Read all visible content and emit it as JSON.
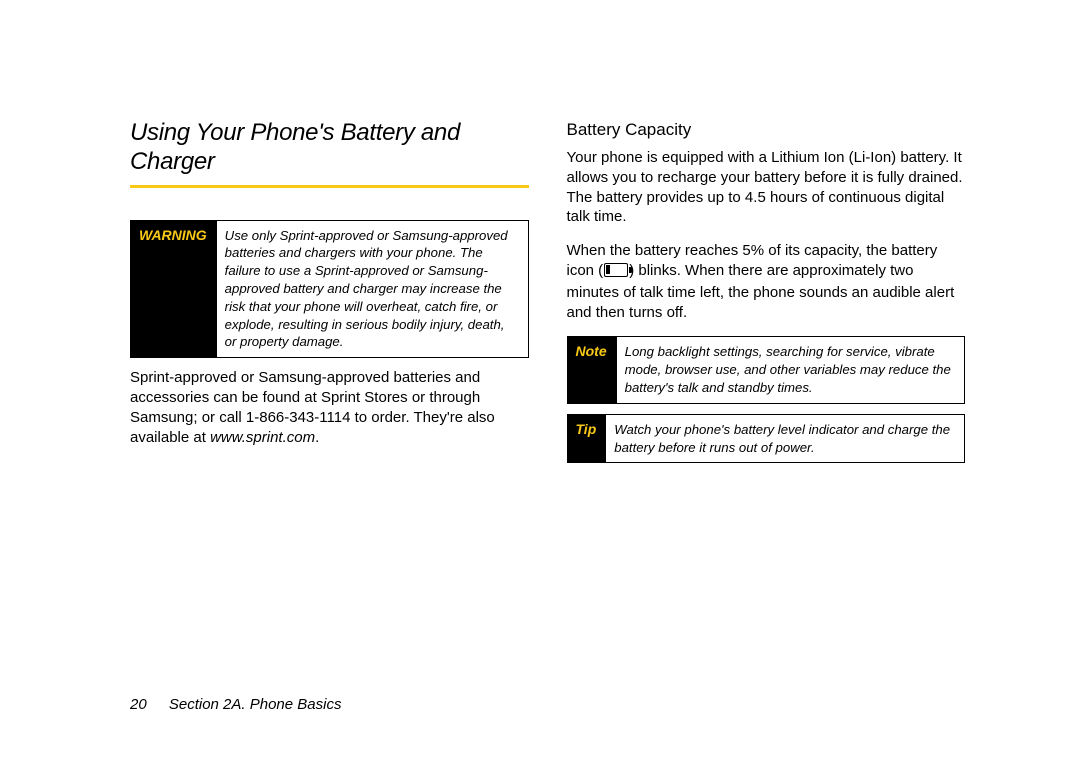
{
  "accent_color": "#f9c918",
  "left": {
    "title": "Using Your Phone's Battery and Charger",
    "warning": {
      "label": "WARNING",
      "text": "Use only Sprint-approved or Samsung-approved batteries and chargers with your phone. The failure to use a Sprint-approved or Samsung-approved battery and charger may increase the risk that your phone will overheat, catch fire, or explode, resulting in serious bodily injury, death, or property damage."
    },
    "para_before_url": "Sprint-approved or Samsung-approved batteries and accessories can be found at Sprint Stores or through Samsung; or call 1-866-343-1114 to order. They're also available at ",
    "url": "www.sprint.com",
    "para_after_url": "."
  },
  "right": {
    "subhead": "Battery Capacity",
    "para1": "Your phone is equipped with a Lithium Ion (Li-Ion) battery. It allows you to recharge your battery before it is fully drained. The battery provides up to 4.5 hours of continuous digital talk time.",
    "para2_before_icon": "When the battery reaches 5% of its capacity, the battery icon (",
    "para2_after_icon": ") blinks. When there are approximately two minutes of talk time left, the phone sounds an audible alert and then turns off.",
    "note": {
      "label": "Note",
      "text": "Long backlight settings, searching for service, vibrate mode, browser use, and other variables may reduce the battery's talk and standby times."
    },
    "tip": {
      "label": "Tip",
      "text": "Watch your phone's battery level indicator and charge the battery before it runs out of power."
    }
  },
  "footer": {
    "page_number": "20",
    "section": "Section 2A. Phone Basics"
  }
}
